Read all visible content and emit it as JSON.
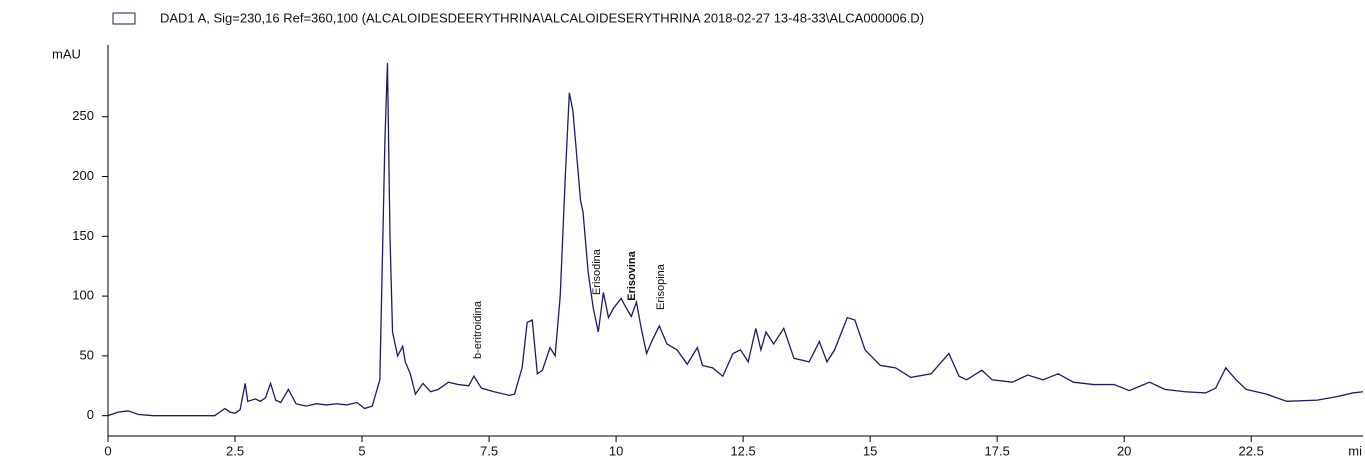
{
  "chart_data": {
    "type": "line",
    "y_label": "mAU",
    "x_label": "mi",
    "x": [
      0,
      0.2,
      0.4,
      0.6,
      0.9,
      2.1,
      2.3,
      2.4,
      2.5,
      2.6,
      2.7,
      2.75,
      2.9,
      3.0,
      3.1,
      3.2,
      3.3,
      3.4,
      3.55,
      3.7,
      3.9,
      4.1,
      4.3,
      4.5,
      4.7,
      4.9,
      5.05,
      5.2,
      5.35,
      5.45,
      5.5,
      5.55,
      5.6,
      5.7,
      5.8,
      5.85,
      5.95,
      6.05,
      6.2,
      6.35,
      6.5,
      6.7,
      6.9,
      7.1,
      7.2,
      7.35,
      7.6,
      7.9,
      8.0,
      8.15,
      8.25,
      8.35,
      8.45,
      8.55,
      8.7,
      8.8,
      8.9,
      9.0,
      9.08,
      9.15,
      9.2,
      9.3,
      9.35,
      9.45,
      9.55,
      9.65,
      9.75,
      9.85,
      9.95,
      10.1,
      10.2,
      10.3,
      10.4,
      10.5,
      10.6,
      10.7,
      10.85,
      11.0,
      11.2,
      11.4,
      11.6,
      11.7,
      11.9,
      12.1,
      12.3,
      12.45,
      12.6,
      12.75,
      12.85,
      12.95,
      13.1,
      13.3,
      13.5,
      13.8,
      14.0,
      14.15,
      14.3,
      14.55,
      14.7,
      14.9,
      15.2,
      15.5,
      15.8,
      16.2,
      16.55,
      16.75,
      16.9,
      17.2,
      17.4,
      17.8,
      18.1,
      18.4,
      18.7,
      19.0,
      19.4,
      19.8,
      20.1,
      20.5,
      20.8,
      21.2,
      21.6,
      21.8,
      22.0,
      22.2,
      22.4,
      22.8,
      23.2,
      23.8,
      24.2,
      24.5,
      24.7
    ],
    "series": [
      {
        "name": "DAD1 A, Sig=230,16 Ref=360,100 (ALCALOIDESDEERYTHRINA\\ALCALOIDESERYTHRINA 2018-02-27 13-48-33\\ALCA000006.D)",
        "color": "#1c1c6b",
        "values": [
          0,
          3,
          4,
          1,
          0,
          0,
          6,
          3,
          2,
          5,
          27,
          12,
          14,
          12,
          15,
          27,
          13,
          11,
          22,
          10,
          8,
          10,
          9,
          10,
          9,
          11,
          6,
          8,
          30,
          230,
          295,
          150,
          70,
          50,
          58,
          45,
          35,
          18,
          27,
          20,
          22,
          28,
          26,
          25,
          33,
          23,
          20,
          17,
          18,
          40,
          78,
          80,
          35,
          38,
          57,
          50,
          100,
          200,
          270,
          255,
          230,
          180,
          170,
          120,
          90,
          70,
          103,
          82,
          90,
          98,
          90,
          83,
          95,
          72,
          52,
          62,
          75,
          60,
          55,
          43,
          57,
          42,
          40,
          33,
          52,
          55,
          45,
          73,
          55,
          70,
          60,
          73,
          48,
          45,
          62,
          45,
          55,
          82,
          80,
          55,
          42,
          40,
          32,
          35,
          52,
          33,
          30,
          38,
          30,
          28,
          34,
          30,
          35,
          28,
          26,
          26,
          21,
          28,
          22,
          20,
          19,
          23,
          40,
          30,
          22,
          18,
          12,
          13,
          16,
          19,
          20
        ]
      }
    ],
    "annotations": [
      "b-eritroidina",
      "Erisodina",
      "Erisovina",
      "Erisopina"
    ],
    "xlim": [
      0,
      24.7
    ],
    "ylim": [
      -17,
      310
    ],
    "xticks": [
      0,
      2.5,
      5,
      7.5,
      10,
      12.5,
      15,
      17.5,
      20,
      22.5
    ],
    "yticks": [
      0,
      50,
      100,
      150,
      200,
      250
    ],
    "grid": false
  }
}
